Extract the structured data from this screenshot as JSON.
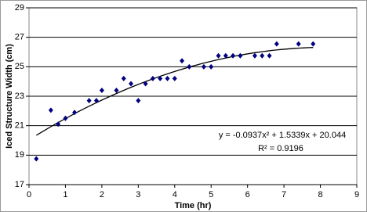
{
  "chart_data": {
    "type": "scatter",
    "x_label": "Time (hr)",
    "y_label": "Iced Structure Width (cm)",
    "series": [
      {
        "color": "#000080",
        "x": [
          0.2,
          0.6,
          0.8,
          1.0,
          1.25,
          1.65,
          1.85,
          2.0,
          2.4,
          2.6,
          2.8,
          3.0,
          3.2,
          3.4,
          3.6,
          3.8,
          4.0,
          4.2,
          4.4,
          4.8,
          5.0,
          5.2,
          5.4,
          5.6,
          5.8,
          6.2,
          6.4,
          6.6,
          6.8,
          7.4,
          7.8
        ],
        "values": [
          18.75,
          22.05,
          21.1,
          21.5,
          21.9,
          22.7,
          22.7,
          23.4,
          23.4,
          24.2,
          23.85,
          22.7,
          23.85,
          24.2,
          24.2,
          24.2,
          24.2,
          25.4,
          25.0,
          25.0,
          25.0,
          25.75,
          25.75,
          25.75,
          25.75,
          25.75,
          25.75,
          25.75,
          26.55,
          26.55,
          26.55
        ]
      }
    ],
    "trendline": {
      "coefficients": [
        -0.0937,
        1.5339,
        20.044
      ],
      "xlim": [
        0.2,
        7.8
      ],
      "color": "#000000",
      "equation": "y = -0.0937x² + 1.5339x + 20.044",
      "r_squared_label": "R² = 0.9196"
    },
    "xlim": [
      0,
      9
    ],
    "xticks": [
      0,
      1,
      2,
      3,
      4,
      5,
      6,
      7,
      8,
      9
    ],
    "ylim": [
      17,
      29
    ],
    "yticks": [
      17,
      19,
      21,
      23,
      25,
      27,
      29
    ],
    "grid": true
  }
}
